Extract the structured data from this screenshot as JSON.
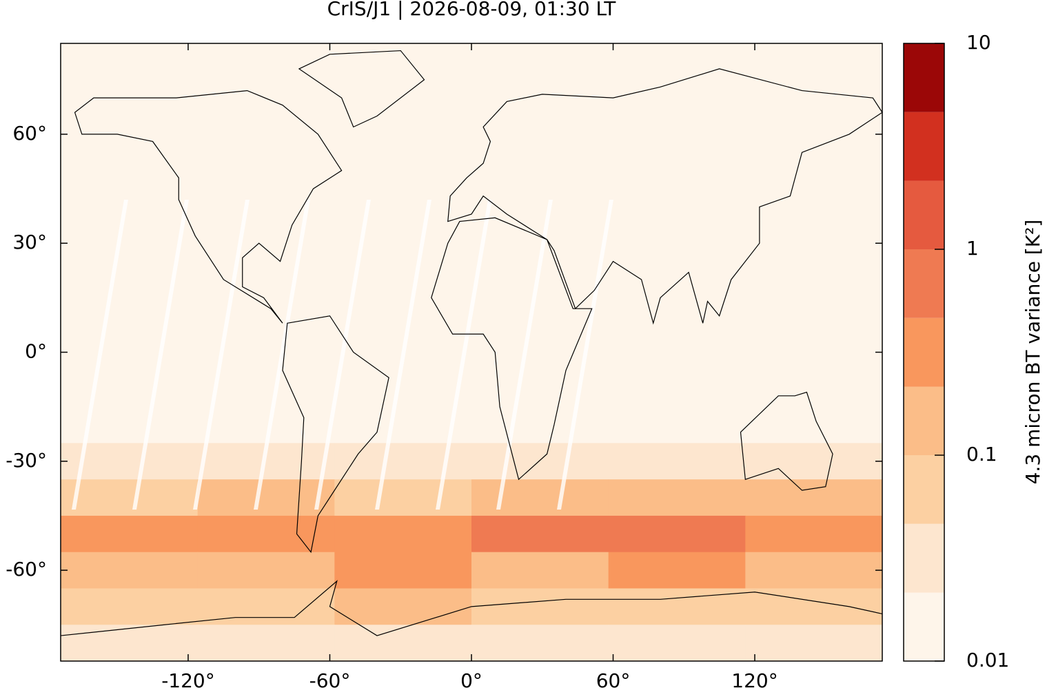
{
  "chart_data": {
    "type": "heatmap",
    "title": "CrIS/J1 | 2026-08-09, 01:30 LT",
    "colorbar_label": "4.3 micron BT variance [K²]",
    "xlim": [
      -174,
      174
    ],
    "ylim": [
      -85,
      85
    ],
    "xticks": [
      {
        "value": -120,
        "label": "-120°"
      },
      {
        "value": -60,
        "label": "-60°"
      },
      {
        "value": 0,
        "label": "0°"
      },
      {
        "value": 60,
        "label": "60°"
      },
      {
        "value": 120,
        "label": "120°"
      }
    ],
    "yticks": [
      {
        "value": 60,
        "label": "60°"
      },
      {
        "value": 30,
        "label": "30°"
      },
      {
        "value": 0,
        "label": "0°"
      },
      {
        "value": -30,
        "label": "-30°"
      },
      {
        "value": -60,
        "label": "-60°"
      }
    ],
    "clim": [
      0.01,
      10
    ],
    "log_scale": true,
    "cticks": [
      10,
      1,
      0.1,
      0.01
    ],
    "levels": [
      0.01,
      0.0215,
      0.0464,
      0.1,
      0.215,
      0.464,
      1,
      2.15,
      4.64,
      10
    ],
    "colors": [
      "#fef5ea",
      "#fde6cf",
      "#fcd0a2",
      "#fbbd88",
      "#f9975d",
      "#ef7a52",
      "#e55a3f",
      "#d2301f",
      "#9b0707"
    ],
    "x": [
      -145,
      -87,
      -29,
      29,
      87,
      145
    ],
    "y": [
      80,
      70,
      60,
      50,
      40,
      30,
      20,
      10,
      0,
      -10,
      -20,
      -30,
      -40,
      -50,
      -60,
      -70,
      -80
    ],
    "values": [
      [
        0.012,
        0.012,
        0.012,
        0.012,
        0.012,
        0.012
      ],
      [
        0.012,
        0.012,
        0.012,
        0.012,
        0.012,
        0.012
      ],
      [
        0.012,
        0.012,
        0.012,
        0.012,
        0.012,
        0.012
      ],
      [
        0.012,
        0.012,
        0.013,
        0.012,
        0.012,
        0.012
      ],
      [
        0.013,
        0.013,
        0.015,
        0.013,
        0.013,
        0.013
      ],
      [
        0.014,
        0.014,
        0.015,
        0.014,
        0.014,
        0.014
      ],
      [
        0.015,
        0.015,
        0.015,
        0.015,
        0.015,
        0.015
      ],
      [
        0.016,
        0.016,
        0.016,
        0.016,
        0.016,
        0.016
      ],
      [
        0.016,
        0.016,
        0.016,
        0.016,
        0.016,
        0.016
      ],
      [
        0.017,
        0.017,
        0.017,
        0.017,
        0.017,
        0.017
      ],
      [
        0.018,
        0.018,
        0.018,
        0.017,
        0.018,
        0.018
      ],
      [
        0.025,
        0.03,
        0.025,
        0.03,
        0.03,
        0.035
      ],
      [
        0.08,
        0.1,
        0.07,
        0.15,
        0.12,
        0.1
      ],
      [
        0.3,
        0.25,
        0.35,
        0.5,
        0.6,
        0.4
      ],
      [
        0.15,
        0.12,
        0.3,
        0.2,
        0.25,
        0.15
      ],
      [
        0.06,
        0.05,
        0.2,
        0.05,
        0.05,
        0.05
      ],
      [
        0.03,
        0.03,
        0.04,
        0.03,
        0.03,
        0.025
      ]
    ]
  }
}
